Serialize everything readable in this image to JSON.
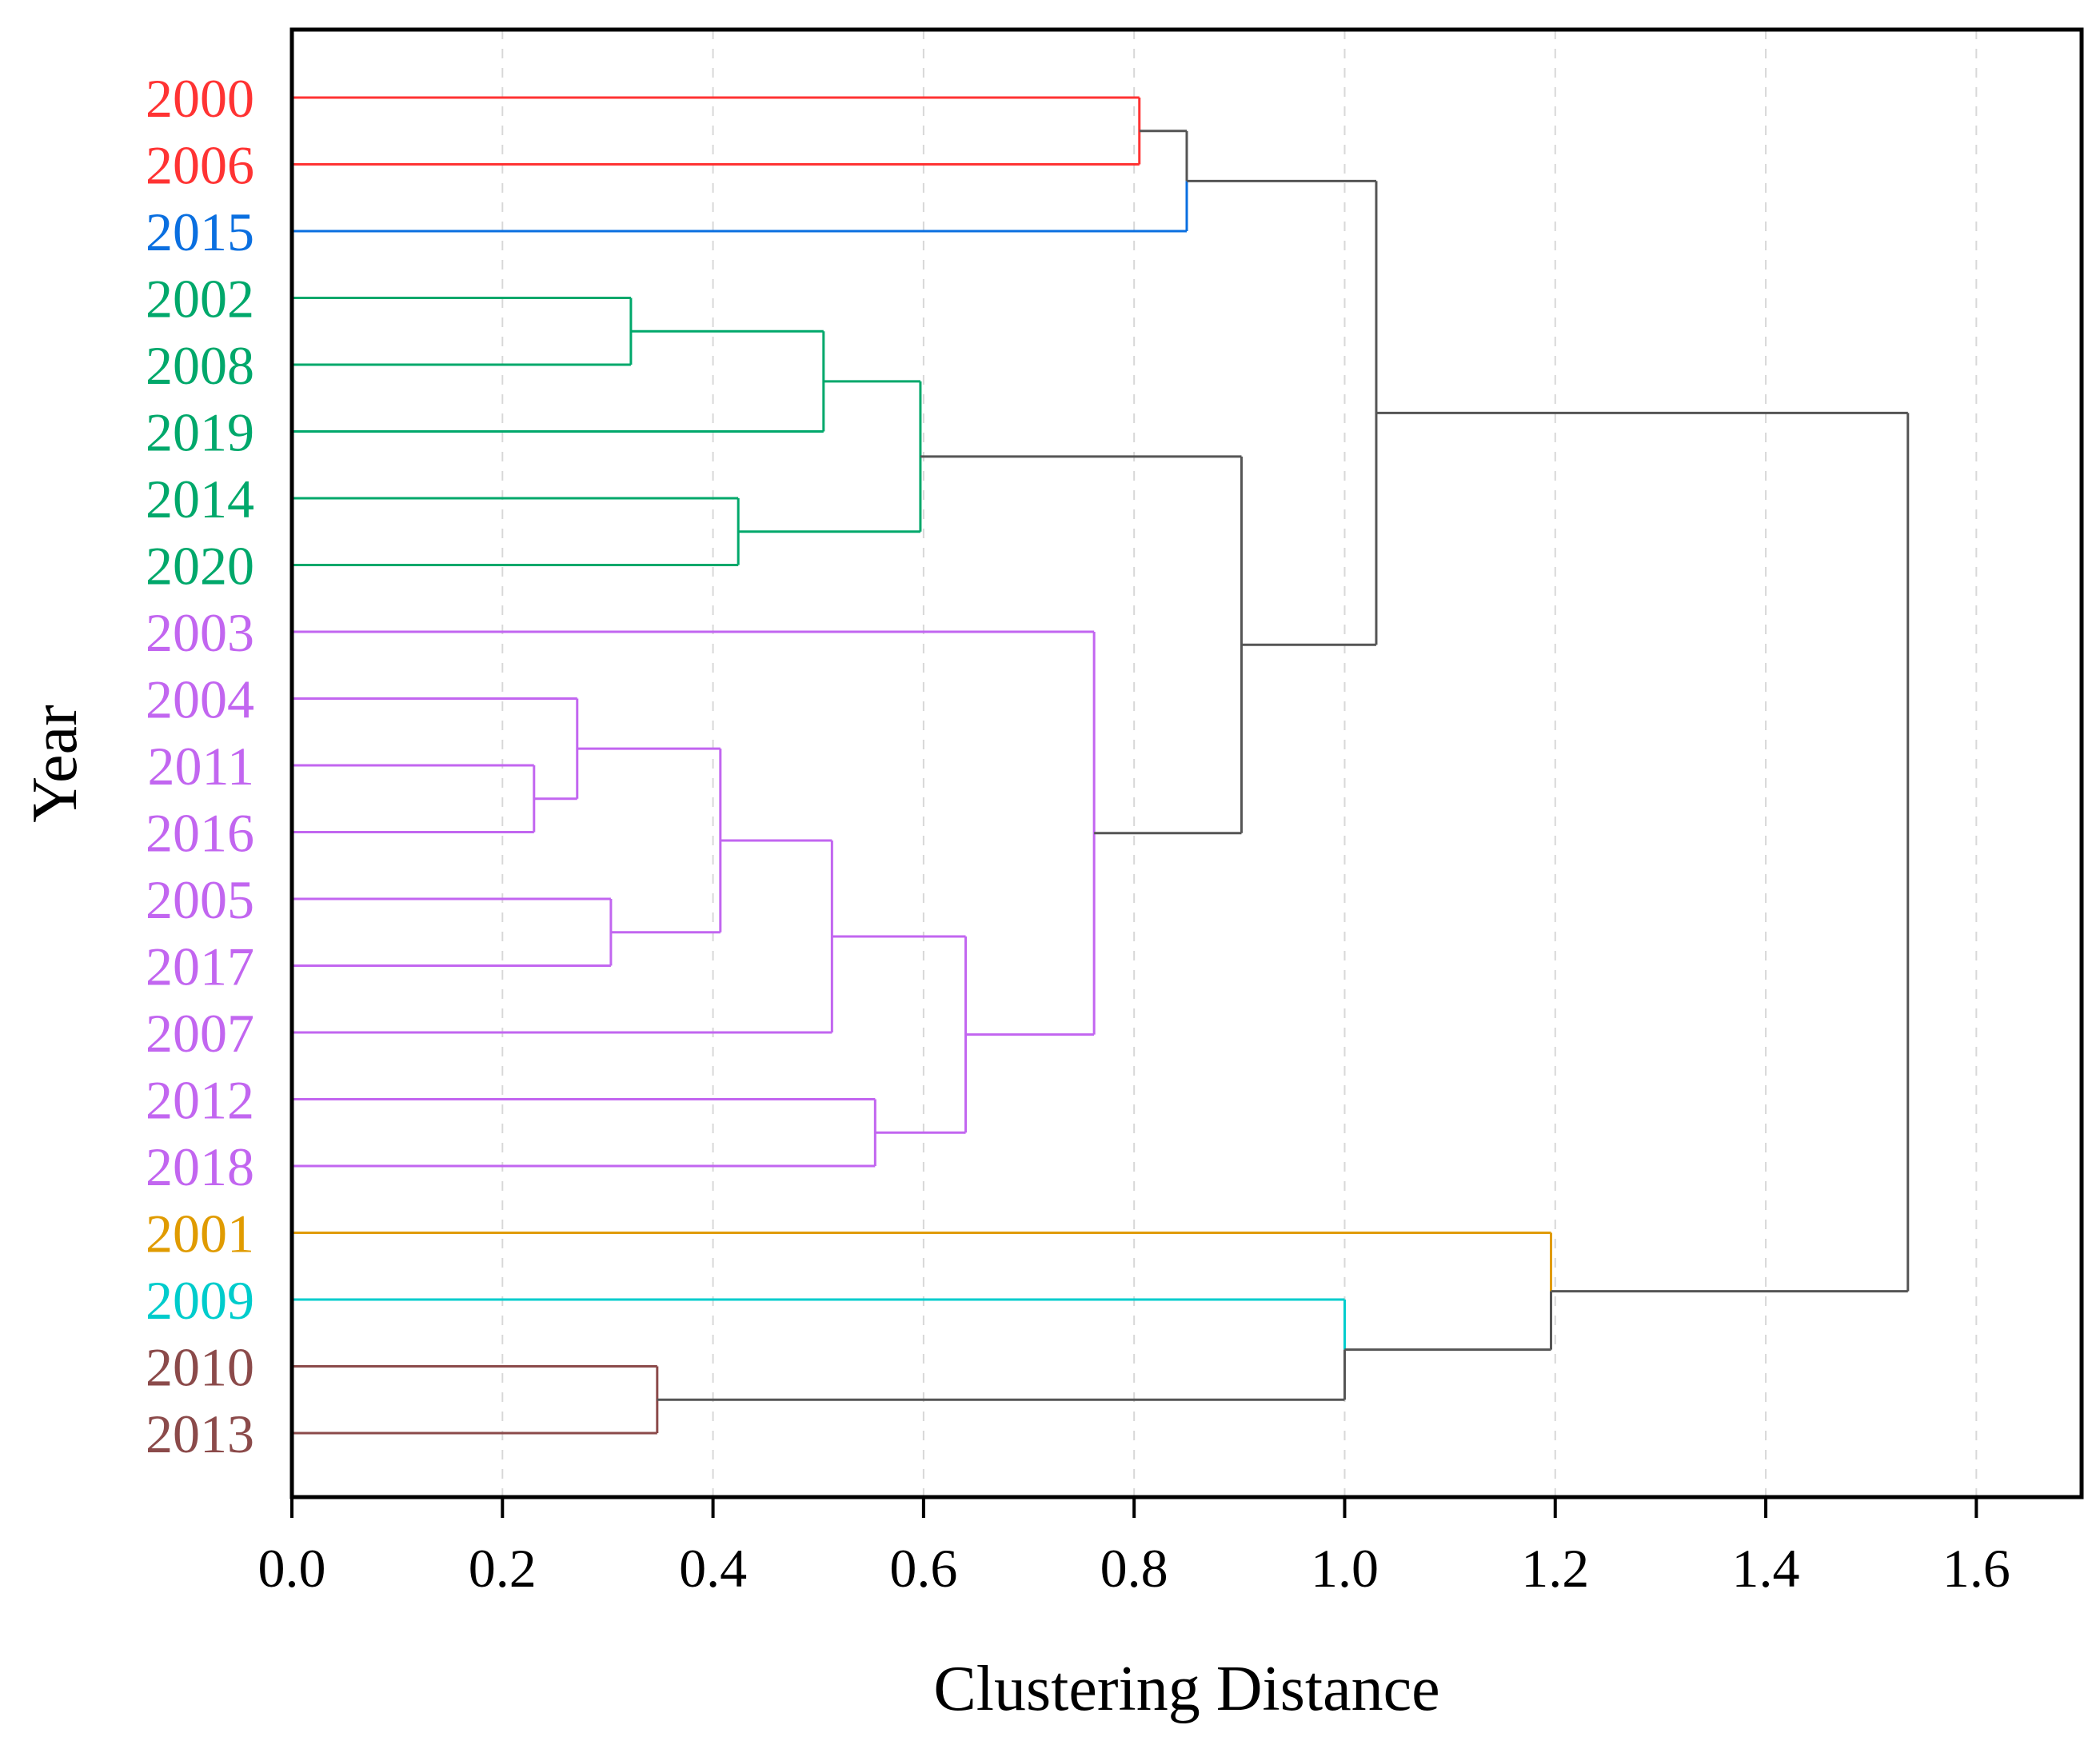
{
  "chart_data": {
    "type": "dendrogram",
    "title": "",
    "xlabel": "Clustering Distance",
    "ylabel": "Year",
    "xlim": [
      0.0,
      1.7
    ],
    "xticks": [
      0.0,
      0.2,
      0.4,
      0.6,
      0.8,
      1.0,
      1.2,
      1.4,
      1.6
    ],
    "xtick_labels": [
      "0.0",
      "0.2",
      "0.4",
      "0.6",
      "0.8",
      "1.0",
      "1.2",
      "1.4",
      "1.6"
    ],
    "grid": "vertical dashed",
    "leaves": [
      {
        "label": "2000",
        "color": "#ff3333"
      },
      {
        "label": "2006",
        "color": "#ff3333"
      },
      {
        "label": "2015",
        "color": "#0a6fe0"
      },
      {
        "label": "2002",
        "color": "#00a86b"
      },
      {
        "label": "2008",
        "color": "#00a86b"
      },
      {
        "label": "2019",
        "color": "#00a86b"
      },
      {
        "label": "2014",
        "color": "#00a86b"
      },
      {
        "label": "2020",
        "color": "#00a86b"
      },
      {
        "label": "2003",
        "color": "#c266f0"
      },
      {
        "label": "2004",
        "color": "#c266f0"
      },
      {
        "label": "2011",
        "color": "#c266f0"
      },
      {
        "label": "2016",
        "color": "#c266f0"
      },
      {
        "label": "2005",
        "color": "#c266f0"
      },
      {
        "label": "2017",
        "color": "#c266f0"
      },
      {
        "label": "2007",
        "color": "#c266f0"
      },
      {
        "label": "2012",
        "color": "#c266f0"
      },
      {
        "label": "2018",
        "color": "#c266f0"
      },
      {
        "label": "2001",
        "color": "#e09b00"
      },
      {
        "label": "2009",
        "color": "#00cccc"
      },
      {
        "label": "2010",
        "color": "#8b4a4a"
      },
      {
        "label": "2013",
        "color": "#8b4a4a"
      }
    ],
    "merges": [
      {
        "a": "L0",
        "b": "L1",
        "distance": 0.805,
        "color": "#ff3333"
      },
      {
        "a": "M0",
        "b": "L2",
        "distance": 0.85,
        "color": "#555555",
        "color_b": "#0a6fe0"
      },
      {
        "a": "L3",
        "b": "L4",
        "distance": 0.322,
        "color": "#00a86b"
      },
      {
        "a": "M2",
        "b": "L5",
        "distance": 0.505,
        "color": "#00a86b"
      },
      {
        "a": "L6",
        "b": "L7",
        "distance": 0.424,
        "color": "#00a86b"
      },
      {
        "a": "M3",
        "b": "M4",
        "distance": 0.597,
        "color": "#00a86b"
      },
      {
        "a": "L10",
        "b": "L11",
        "distance": 0.23,
        "color": "#c266f0"
      },
      {
        "a": "L9",
        "b": "M6",
        "distance": 0.271,
        "color": "#c266f0"
      },
      {
        "a": "L12",
        "b": "L13",
        "distance": 0.303,
        "color": "#c266f0"
      },
      {
        "a": "M7",
        "b": "M8",
        "distance": 0.407,
        "color": "#c266f0"
      },
      {
        "a": "M9",
        "b": "L14",
        "distance": 0.513,
        "color": "#c266f0"
      },
      {
        "a": "L15",
        "b": "L16",
        "distance": 0.554,
        "color": "#c266f0"
      },
      {
        "a": "M10",
        "b": "M11",
        "distance": 0.64,
        "color": "#c266f0"
      },
      {
        "a": "L8",
        "b": "M12",
        "distance": 0.762,
        "color": "#c266f0"
      },
      {
        "a": "M5",
        "b": "M13",
        "distance": 0.902,
        "color": "#555555"
      },
      {
        "a": "M1",
        "b": "M14",
        "distance": 1.03,
        "color": "#555555"
      },
      {
        "a": "L19",
        "b": "L20",
        "distance": 0.347,
        "color": "#8b4a4a"
      },
      {
        "a": "L18",
        "b": "M16",
        "distance": 1.0,
        "color": "#555555",
        "color_a": "#00cccc"
      },
      {
        "a": "L17",
        "b": "M17",
        "distance": 1.196,
        "color": "#555555",
        "color_a": "#e09b00"
      },
      {
        "a": "M15",
        "b": "M18",
        "distance": 1.535,
        "color": "#555555"
      }
    ]
  }
}
